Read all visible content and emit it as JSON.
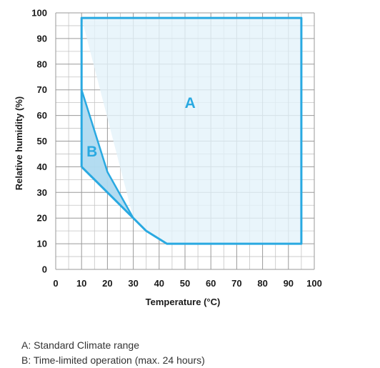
{
  "chart_data": {
    "type": "area",
    "xlabel": "Temperature (°C)",
    "ylabel": "Relative humidity (%)",
    "xlim": [
      0,
      100
    ],
    "ylim": [
      0,
      100
    ],
    "x_ticks": [
      "0",
      "10",
      "20",
      "30",
      "40",
      "50",
      "60",
      "70",
      "80",
      "90",
      "100"
    ],
    "y_ticks": [
      "0",
      "10",
      "20",
      "30",
      "40",
      "50",
      "60",
      "70",
      "80",
      "90",
      "100"
    ],
    "grid": true,
    "regions": [
      {
        "name": "A",
        "label": "A",
        "label_at": [
          52,
          63
        ],
        "points": [
          [
            10,
            98
          ],
          [
            95,
            98
          ],
          [
            95,
            10
          ],
          [
            43,
            10
          ],
          [
            35,
            15
          ],
          [
            30,
            20
          ],
          [
            20,
            30
          ],
          [
            10,
            40
          ],
          [
            10,
            70
          ],
          [
            20,
            38
          ],
          [
            30,
            20
          ]
        ]
      },
      {
        "name": "B",
        "label": "B",
        "label_at": [
          14,
          44
        ],
        "points": [
          [
            10,
            70
          ],
          [
            20,
            38
          ],
          [
            30,
            20
          ],
          [
            20,
            30
          ],
          [
            10,
            40
          ]
        ]
      }
    ],
    "outline": [
      [
        10,
        40
      ],
      [
        10,
        98
      ],
      [
        95,
        98
      ],
      [
        95,
        10
      ],
      [
        43,
        10
      ],
      [
        35,
        15
      ],
      [
        30,
        20
      ],
      [
        20,
        30
      ],
      [
        10,
        40
      ]
    ],
    "b_upper_edge": [
      [
        10,
        70
      ],
      [
        20,
        38
      ],
      [
        30,
        20
      ]
    ],
    "colors": {
      "line": "#29a9e1",
      "fill_a": "#e3f2fa",
      "fill_b": "#a9d7ef",
      "grid": "#9a9a9a"
    }
  },
  "legend": [
    {
      "key": "a",
      "text": "A: Standard Climate range"
    },
    {
      "key": "b",
      "text": "B: Time-limited operation (max. 24 hours)"
    }
  ]
}
